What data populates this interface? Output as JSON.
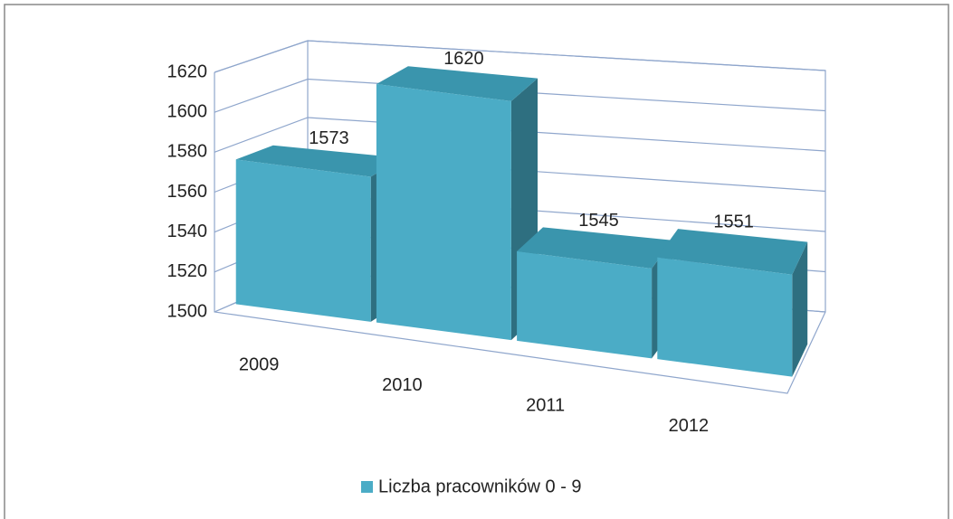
{
  "chart_data": {
    "type": "bar3d",
    "categories": [
      "2009",
      "2010",
      "2011",
      "2012"
    ],
    "series": [
      {
        "name": "Liczba pracowników 0 - 9",
        "color": "#4bacc6",
        "values": [
          1573,
          1620,
          1545,
          1551
        ]
      }
    ],
    "ylim": [
      1500,
      1620
    ],
    "yticks": [
      1500,
      1520,
      1540,
      1560,
      1580,
      1600,
      1620
    ],
    "grid": true,
    "legend": "bottom"
  }
}
